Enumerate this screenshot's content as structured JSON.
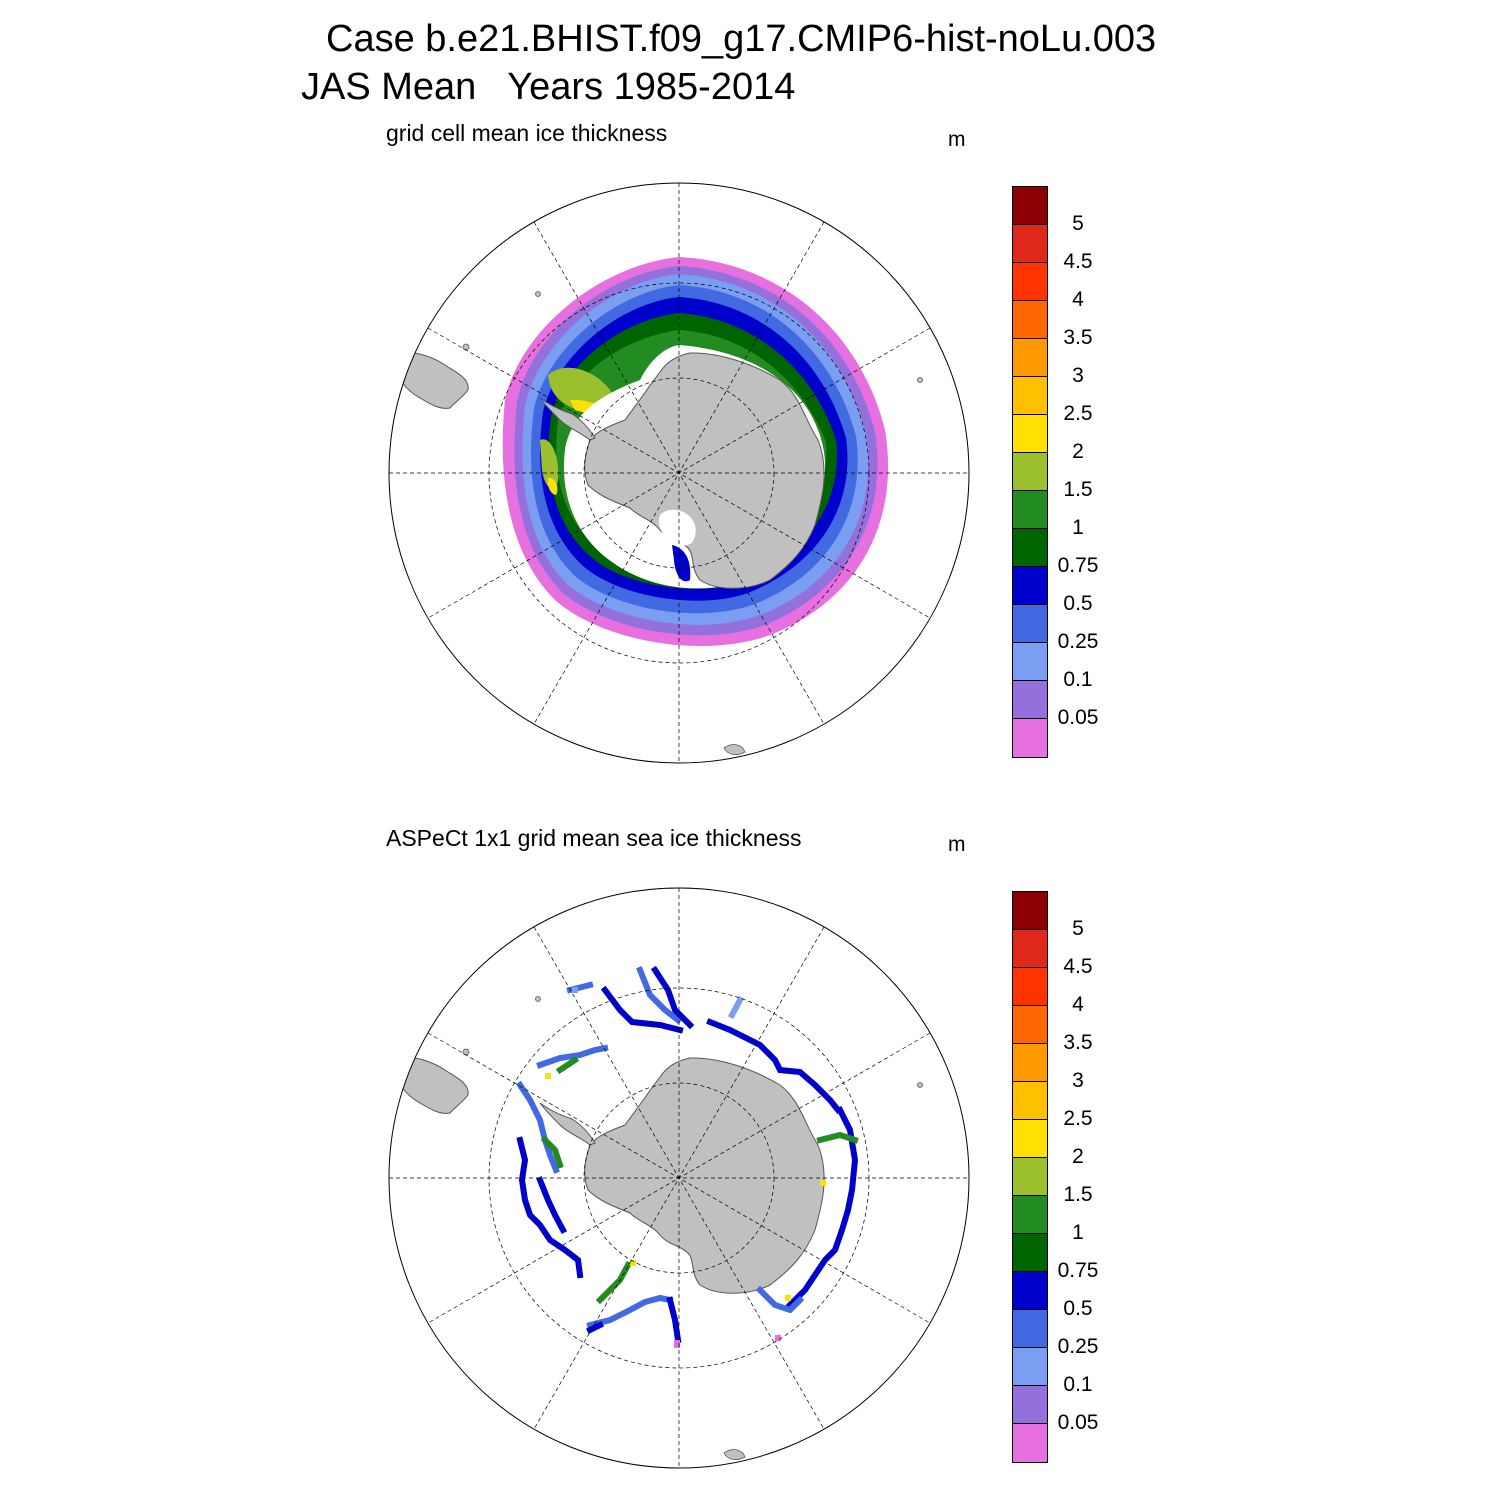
{
  "header": {
    "case": "Case b.e21.BHIST.f09_g17.CMIP6-hist-noLu.003",
    "period": "JAS Mean   Years 1985-2014"
  },
  "panels": [
    {
      "title": "grid cell mean ice thickness",
      "units": "m"
    },
    {
      "title": "ASPeCt 1x1 grid mean sea ice thickness",
      "units": "m"
    }
  ],
  "colorbar": {
    "colors_top_to_bottom": [
      "#8b0000",
      "#e0281a",
      "#ff3300",
      "#ff6600",
      "#ff9900",
      "#ffc000",
      "#ffe000",
      "#9cbf2e",
      "#228b22",
      "#006400",
      "#0000cd",
      "#4169e1",
      "#7b9ef2",
      "#9370db",
      "#e670e0"
    ],
    "labels_top_to_bottom": [
      "5",
      "4.5",
      "4",
      "3.5",
      "3",
      "2.5",
      "2",
      "1.5",
      "1",
      "0.75",
      "0.5",
      "0.25",
      "0.1",
      "0.05"
    ]
  },
  "map": {
    "projection": "south polar stereographic",
    "land_color": "#c0c0c0"
  }
}
